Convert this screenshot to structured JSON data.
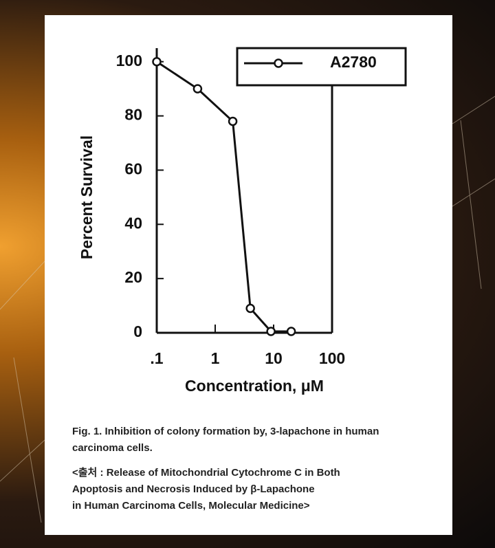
{
  "chart_data": {
    "type": "line",
    "x_title": "Concentration,  μM",
    "y_title": "Percent Survival",
    "x": [
      0.1,
      0.5,
      2,
      4,
      9,
      20
    ],
    "series": [
      {
        "name": "A2780",
        "color": "#111111",
        "values": [
          100,
          90,
          78,
          9,
          0.5,
          0.5
        ]
      }
    ],
    "log_x": true,
    "xlim": [
      0.1,
      100
    ],
    "xticks": [
      {
        "value": 0.1,
        "label": ".1"
      },
      1,
      10,
      100
    ],
    "ylim": [
      0,
      105
    ],
    "yticks": [
      0,
      20,
      40,
      60,
      80,
      100
    ],
    "grid": false,
    "legend": "upper right"
  },
  "caption": {
    "figure": [
      "Fig. 1. Inhibition of colony formation by, 3-lapachone in human",
      "carcinoma cells."
    ],
    "source": [
      "<출처 : Release of Mitochondrial Cytochrome C in Both",
      "Apoptosis and Necrosis Induced by β-Lapachone",
      "in Human Carcinoma Cells, Molecular Medicine>"
    ]
  }
}
